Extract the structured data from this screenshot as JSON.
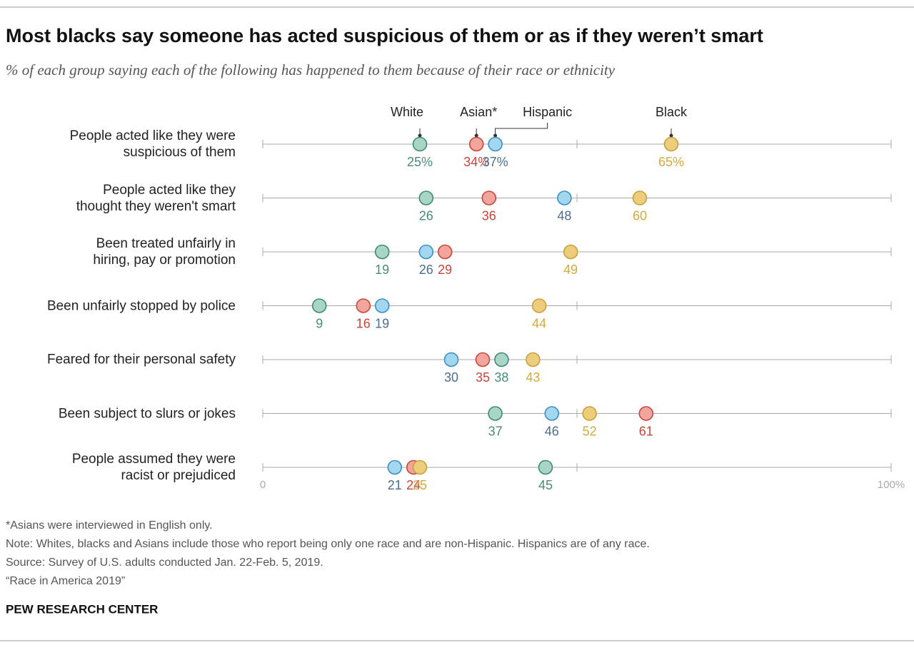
{
  "chart_data": {
    "type": "dot",
    "title": "Most blacks say someone has acted suspicious of them or as if they weren’t smart",
    "subtitle": "% of each group saying each of the following has happened to them because of their race or ethnicity",
    "categories": [
      "People acted like they were\nsuspicious of them",
      "People acted like they\nthought they weren't smart",
      "Been treated unfairly in\nhiring, pay or promotion",
      "Been unfairly stopped by police",
      "Feared for their personal safety",
      "Been subject to slurs or jokes",
      "People assumed they were\nracist or prejudiced"
    ],
    "series": [
      {
        "name": "White",
        "color": "#a9d6c4",
        "values": [
          25,
          26,
          19,
          9,
          38,
          37,
          45
        ],
        "value_labels": [
          "25%",
          "26",
          "19",
          "9",
          "38",
          "37",
          "45"
        ]
      },
      {
        "name": "Asian*",
        "color": "#f2a59c",
        "values": [
          34,
          36,
          29,
          16,
          35,
          61,
          24
        ],
        "value_labels": [
          "34%",
          "36",
          "29",
          "16",
          "35",
          "61",
          "24"
        ]
      },
      {
        "name": "Hispanic",
        "color": "#a3d6ef",
        "values": [
          37,
          48,
          26,
          19,
          30,
          46,
          21
        ],
        "value_labels": [
          "37%",
          "48",
          "26",
          "19",
          "30",
          "46",
          "21"
        ]
      },
      {
        "name": "Black",
        "color": "#eccd7c",
        "values": [
          65,
          60,
          49,
          44,
          43,
          52,
          25
        ],
        "value_labels": [
          "65%",
          "60",
          "49",
          "44",
          "43",
          "52",
          "25"
        ]
      }
    ],
    "xlim": [
      0,
      100
    ],
    "xticks": [
      0,
      {
        "value": 100,
        "label": "100%"
      }
    ],
    "xticks_unlabeled": [
      50
    ],
    "notes": [
      "*Asians were interviewed in English only.",
      "Note: Whites, blacks and Asians include those who report being only one race and are non-Hispanic. Hispanics are of any race.",
      "Source: Survey of U.S. adults conducted Jan. 22-Feb. 5, 2019.",
      "“Race in America 2019”"
    ],
    "source": "PEW RESEARCH CENTER"
  }
}
